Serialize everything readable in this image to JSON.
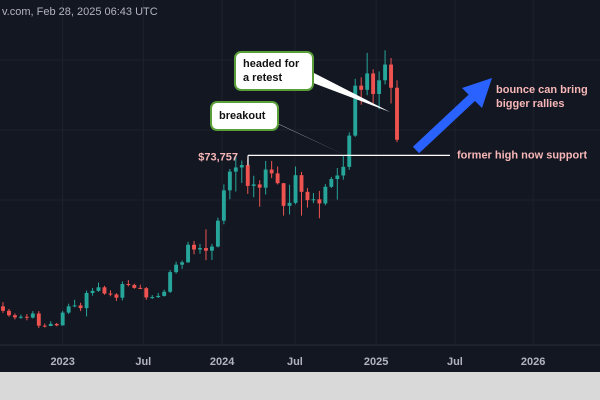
{
  "chart_data": {
    "type": "candlestick",
    "source_line": "v.com, Feb 28, 2025 06:43 UTC",
    "xlim": [
      -0.5,
      100
    ],
    "xticks": [
      {
        "value": 10,
        "label": "2023"
      },
      {
        "value": 23.5,
        "label": "Jul"
      },
      {
        "value": 36.7,
        "label": "2024"
      },
      {
        "value": 48.9,
        "label": "Jul"
      },
      {
        "value": 62.5,
        "label": "2025"
      },
      {
        "value": 75.7,
        "label": "Jul"
      },
      {
        "value": 88.8,
        "label": "2026"
      }
    ],
    "ylim": [
      10000,
      126000
    ],
    "up_color": "#26a69a",
    "down_color": "#ef5350",
    "series": [
      {
        "name": "open",
        "values": [
          23000,
          21500,
          20000,
          19300,
          19500,
          19200,
          20600,
          16500,
          16400,
          17100,
          16600,
          20900,
          23000,
          23300,
          22400,
          27500,
          28200,
          29400,
          27300,
          27000,
          25900,
          30500,
          30200,
          29200,
          29100,
          26000,
          26100,
          26500,
          27900,
          34500,
          37000,
          37800,
          43700,
          42100,
          42600,
          41700,
          43100,
          51800,
          62000,
          68300,
          69700,
          70500,
          63500,
          64000,
          62900,
          69000,
          67700,
          64400,
          56800,
          57800,
          67100,
          61500,
          58700,
          59000,
          57600,
          63200,
          65800,
          67000,
          69900,
          80400,
          97200,
          95800,
          101300,
          94400,
          99000,
          104300,
          96500
        ]
      },
      {
        "name": "high",
        "values": [
          24400,
          22100,
          20600,
          20200,
          20400,
          21400,
          21400,
          17200,
          18000,
          17400,
          21500,
          23900,
          25200,
          24200,
          28300,
          29200,
          31000,
          29900,
          28400,
          27400,
          31400,
          31800,
          30600,
          30300,
          29500,
          26800,
          27500,
          28600,
          35200,
          38000,
          38400,
          44700,
          45000,
          44000,
          48900,
          44000,
          52800,
          64000,
          69200,
          73757,
          72000,
          72700,
          66900,
          65400,
          71900,
          71900,
          70000,
          64500,
          63900,
          70000,
          68200,
          62800,
          61100,
          61800,
          64100,
          66500,
          69500,
          73600,
          81500,
          99500,
          100000,
          108200,
          102700,
          102000,
          109100,
          106500,
          99000
        ]
      },
      {
        "name": "low",
        "values": [
          20800,
          19500,
          18600,
          18800,
          18300,
          18900,
          15700,
          15900,
          16300,
          16300,
          16500,
          20400,
          22700,
          21400,
          19600,
          26600,
          27900,
          26900,
          26400,
          24800,
          25000,
          29700,
          28900,
          28800,
          25200,
          25500,
          25800,
          26300,
          27500,
          34000,
          35600,
          37600,
          40500,
          40700,
          38500,
          38600,
          42800,
          50600,
          59000,
          61600,
          64500,
          60800,
          59700,
          56500,
          60600,
          66100,
          64000,
          53500,
          53900,
          57300,
          53500,
          56200,
          57700,
          52600,
          57000,
          62800,
          58900,
          65600,
          68900,
          80000,
          90800,
          94000,
          91300,
          89300,
          97600,
          91200,
          78200
        ]
      },
      {
        "name": "close",
        "values": [
          21500,
          20000,
          19300,
          19500,
          19200,
          20600,
          16500,
          16400,
          17100,
          16600,
          20900,
          23000,
          23300,
          22400,
          27500,
          28200,
          29400,
          27300,
          27000,
          25900,
          30500,
          30200,
          29200,
          29100,
          26000,
          26100,
          26500,
          27900,
          34500,
          37000,
          37800,
          43700,
          42100,
          42600,
          41700,
          43100,
          51800,
          62000,
          68300,
          69700,
          70500,
          63500,
          64000,
          62900,
          69000,
          67700,
          64400,
          56800,
          57800,
          67100,
          61500,
          58700,
          59000,
          57600,
          63200,
          65800,
          67000,
          69900,
          80400,
          97200,
          95800,
          101300,
          94400,
          99000,
          104300,
          96500,
          79000
        ]
      }
    ],
    "level": {
      "value": 73757,
      "label": "$73,757"
    },
    "level_note": "former high now support",
    "callouts": [
      {
        "lines": [
          "headed for",
          "a retest"
        ]
      },
      {
        "lines": [
          "breakout"
        ]
      }
    ],
    "arrow_note": [
      "bounce can bring",
      "bigger rallies"
    ]
  }
}
